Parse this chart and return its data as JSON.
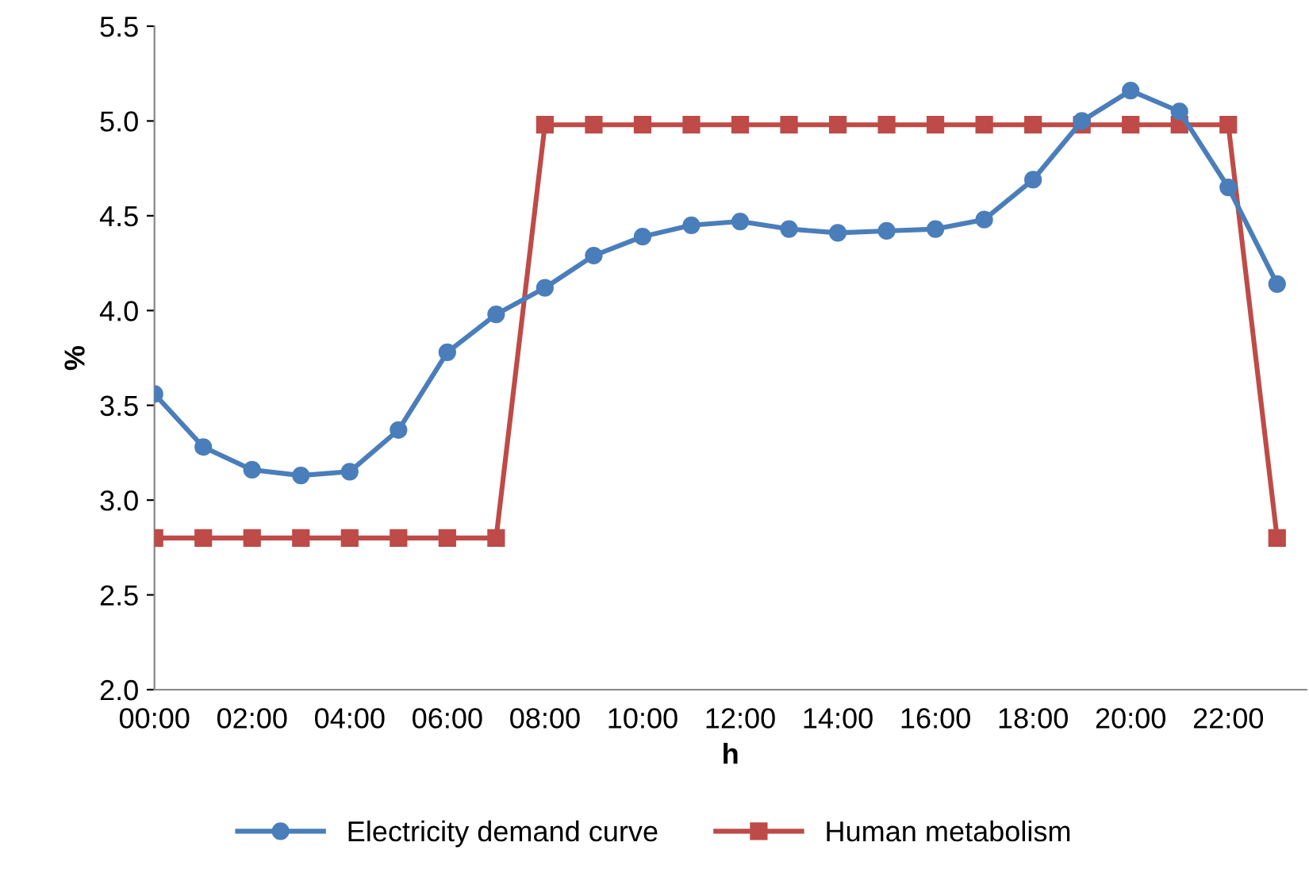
{
  "chart_data": {
    "type": "line",
    "xlabel": "h",
    "ylabel": "%",
    "x": [
      0,
      1,
      2,
      3,
      4,
      5,
      6,
      7,
      8,
      9,
      10,
      11,
      12,
      13,
      14,
      15,
      16,
      17,
      18,
      19,
      20,
      21,
      22,
      23
    ],
    "series": [
      {
        "name": "Electricity demand curve",
        "color": "#4a7ebb",
        "marker": "circle",
        "values": [
          3.56,
          3.28,
          3.16,
          3.13,
          3.15,
          3.37,
          3.78,
          3.98,
          4.12,
          4.29,
          4.39,
          4.45,
          4.47,
          4.43,
          4.41,
          4.42,
          4.43,
          4.48,
          4.69,
          5.0,
          5.16,
          5.05,
          4.65,
          4.14
        ]
      },
      {
        "name": "Human metabolism",
        "color": "#be4b48",
        "marker": "square",
        "values": [
          2.8,
          2.8,
          2.8,
          2.8,
          2.8,
          2.8,
          2.8,
          2.8,
          4.98,
          4.98,
          4.98,
          4.98,
          4.98,
          4.98,
          4.98,
          4.98,
          4.98,
          4.98,
          4.98,
          4.98,
          4.98,
          4.98,
          4.98,
          2.8
        ]
      }
    ],
    "xlim": [
      0,
      23.6
    ],
    "xticks": [
      {
        "value": 0,
        "label": "00:00"
      },
      {
        "value": 2,
        "label": "02:00"
      },
      {
        "value": 4,
        "label": "04:00"
      },
      {
        "value": 6,
        "label": "06:00"
      },
      {
        "value": 8,
        "label": "08:00"
      },
      {
        "value": 10,
        "label": "10:00"
      },
      {
        "value": 12,
        "label": "12:00"
      },
      {
        "value": 14,
        "label": "14:00"
      },
      {
        "value": 16,
        "label": "16:00"
      },
      {
        "value": 18,
        "label": "18:00"
      },
      {
        "value": 20,
        "label": "20:00"
      },
      {
        "value": 22,
        "label": "22:00"
      }
    ],
    "ylim": [
      2.0,
      5.5
    ],
    "yticks": [
      {
        "value": 2.0,
        "label": "2.0"
      },
      {
        "value": 2.5,
        "label": "2.5"
      },
      {
        "value": 3.0,
        "label": "3.0"
      },
      {
        "value": 3.5,
        "label": "3.5"
      },
      {
        "value": 4.0,
        "label": "4.0"
      },
      {
        "value": 4.5,
        "label": "4.5"
      },
      {
        "value": 5.0,
        "label": "5.0"
      },
      {
        "value": 5.5,
        "label": "5.5"
      }
    ],
    "grid": false,
    "legend": "bottom",
    "line_style": "solid"
  }
}
